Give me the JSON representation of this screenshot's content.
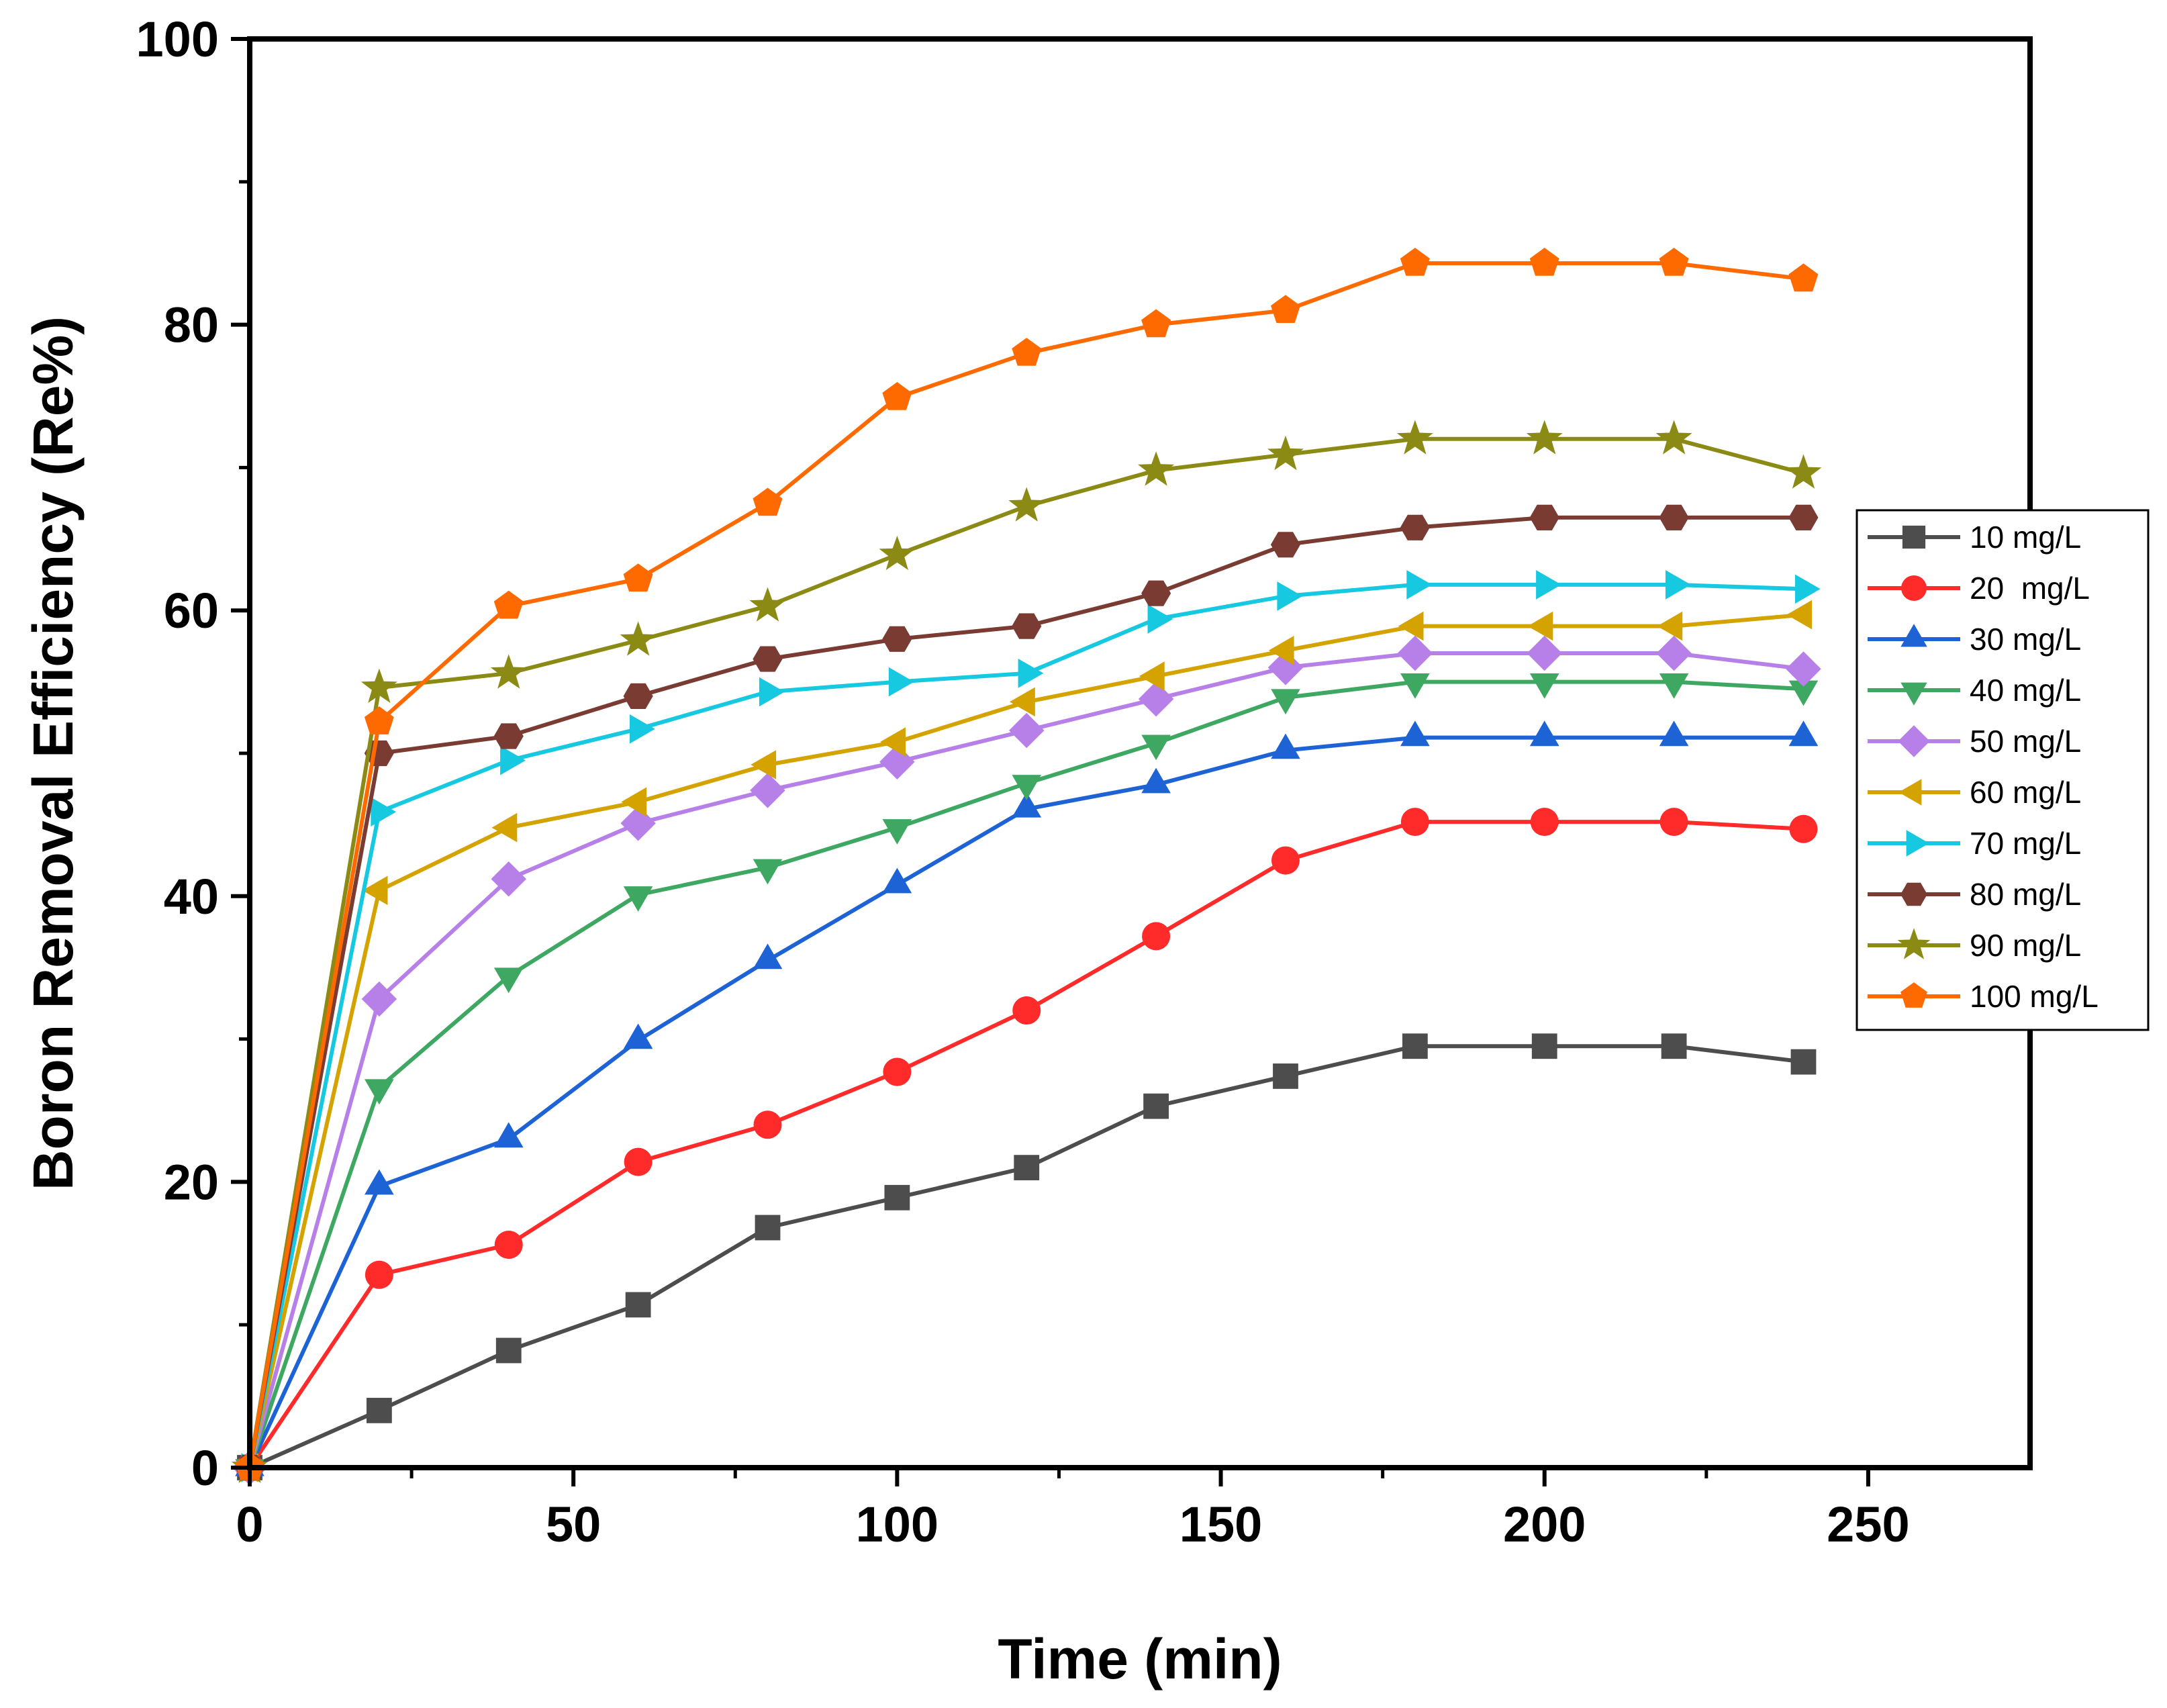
{
  "chart_data": {
    "type": "line",
    "title": "",
    "xlabel": "Time (min)",
    "ylabel": "Boron Removal Efficiency (Re%)",
    "xlim": [
      0,
      275
    ],
    "ylim": [
      0,
      100
    ],
    "xticks": [
      0,
      50,
      100,
      150,
      200,
      250
    ],
    "yticks": [
      0,
      20,
      40,
      60,
      80,
      100
    ],
    "x_tick_labels": [
      "0",
      "50",
      "100",
      "150",
      "200",
      "250"
    ],
    "y_tick_labels": [
      "0",
      "20",
      "40",
      "60",
      "80",
      "100"
    ],
    "grid": false,
    "legend_position": "right",
    "x": [
      0,
      20,
      40,
      60,
      80,
      100,
      120,
      140,
      160,
      180,
      200,
      220,
      240
    ],
    "series": [
      {
        "name": "10 mg/L",
        "color": "#4d4d4d",
        "marker": "square",
        "values": [
          0,
          4,
          8.2,
          11.4,
          16.8,
          18.9,
          21,
          25.3,
          27.4,
          29.5,
          29.5,
          29.5,
          28.4
        ]
      },
      {
        "name": "20  mg/L",
        "color": "#ff2a2a",
        "marker": "circle",
        "values": [
          0,
          13.5,
          15.6,
          21.4,
          24,
          27.7,
          32,
          37.2,
          42.5,
          45.2,
          45.2,
          45.2,
          44.7
        ]
      },
      {
        "name": "30 mg/L",
        "color": "#1e63d6",
        "marker": "triangle-up",
        "values": [
          0,
          19.7,
          23,
          29.9,
          35.5,
          40.8,
          46.1,
          47.8,
          50.2,
          51.1,
          51.1,
          51.1,
          51.1
        ]
      },
      {
        "name": "40 mg/L",
        "color": "#3ea862",
        "marker": "triangle-down",
        "values": [
          0,
          26.6,
          34.4,
          40.1,
          42,
          44.8,
          47.9,
          50.7,
          53.9,
          55,
          55,
          55,
          54.5
        ]
      },
      {
        "name": "50 mg/L",
        "color": "#b77fe8",
        "marker": "diamond",
        "values": [
          0,
          32.8,
          41.2,
          45.1,
          47.4,
          49.4,
          51.6,
          53.8,
          56,
          57,
          57,
          57,
          55.9
        ]
      },
      {
        "name": "60 mg/L",
        "color": "#d4a300",
        "marker": "triangle-left",
        "values": [
          0,
          40.4,
          44.8,
          46.6,
          49.2,
          50.8,
          53.6,
          55.4,
          57.2,
          58.9,
          58.9,
          58.9,
          59.7
        ]
      },
      {
        "name": "70 mg/L",
        "color": "#16c8e0",
        "marker": "triangle-right",
        "values": [
          0,
          45.9,
          49.5,
          51.7,
          54.3,
          55,
          55.6,
          59.4,
          61,
          61.8,
          61.8,
          61.8,
          61.5
        ]
      },
      {
        "name": "80 mg/L",
        "color": "#7a3b32",
        "marker": "hexagon",
        "values": [
          0,
          50,
          51.2,
          54,
          56.6,
          58,
          58.9,
          61.2,
          64.6,
          65.8,
          66.5,
          66.5,
          66.5
        ]
      },
      {
        "name": "90 mg/L",
        "color": "#8a8a14",
        "marker": "star",
        "values": [
          0,
          54.6,
          55.6,
          57.9,
          60.3,
          63.9,
          67.3,
          69.8,
          70.9,
          72,
          72,
          72,
          69.6
        ]
      },
      {
        "name": "100 mg/L",
        "color": "#ff6a00",
        "marker": "pentagon",
        "values": [
          0,
          52.2,
          60.3,
          62.2,
          67.5,
          74.9,
          78,
          80,
          81,
          84.3,
          84.3,
          84.3,
          83.2
        ]
      }
    ]
  }
}
